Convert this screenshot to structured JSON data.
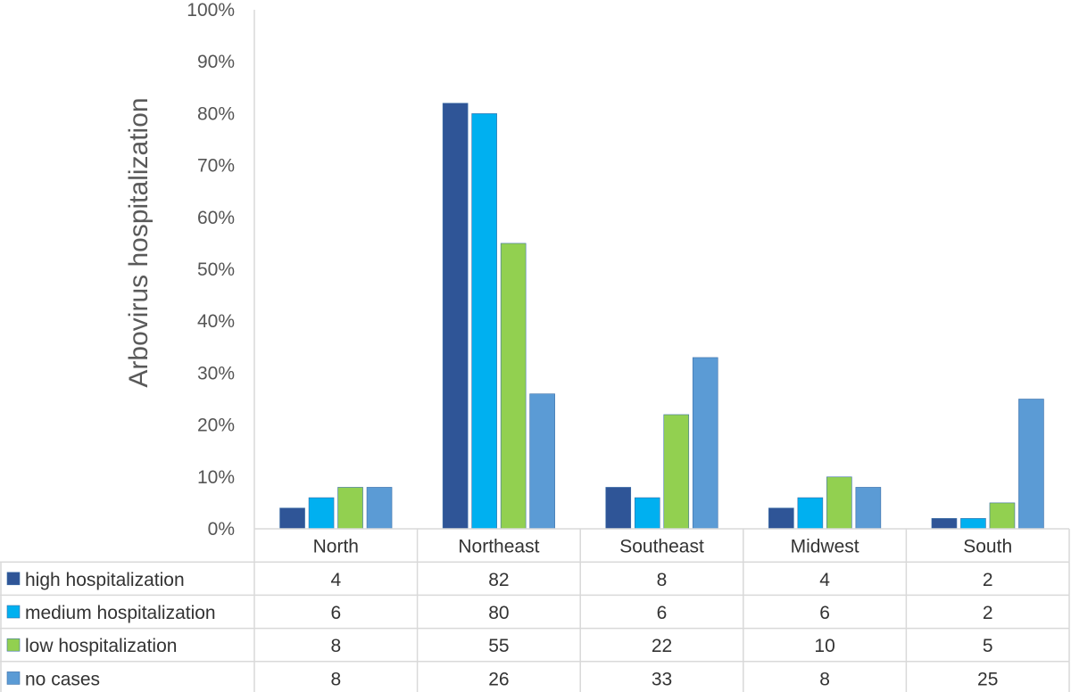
{
  "chart_data": {
    "type": "bar",
    "title": "",
    "xlabel": "",
    "ylabel": "Arbovirus hospitalization",
    "ylim": [
      0,
      100
    ],
    "y_ticks": [
      "0%",
      "10%",
      "20%",
      "30%",
      "40%",
      "50%",
      "60%",
      "70%",
      "80%",
      "90%",
      "100%"
    ],
    "y_tick_values": [
      0,
      10,
      20,
      30,
      40,
      50,
      60,
      70,
      80,
      90,
      100
    ],
    "grid": false,
    "legend": "data-table",
    "categories": [
      "North",
      "Northeast",
      "Southeast",
      "Midwest",
      "South"
    ],
    "series": [
      {
        "name": "high hospitalization",
        "color": "#2f5597",
        "values": [
          4,
          82,
          8,
          4,
          2
        ]
      },
      {
        "name": "medium hospitalization",
        "color": "#00b0f0",
        "values": [
          6,
          80,
          6,
          6,
          2
        ]
      },
      {
        "name": "low hospitalization",
        "color": "#92d050",
        "values": [
          8,
          55,
          22,
          10,
          5
        ]
      },
      {
        "name": "no cases",
        "color": "#5b9bd5",
        "values": [
          8,
          26,
          33,
          8,
          25
        ]
      }
    ]
  }
}
